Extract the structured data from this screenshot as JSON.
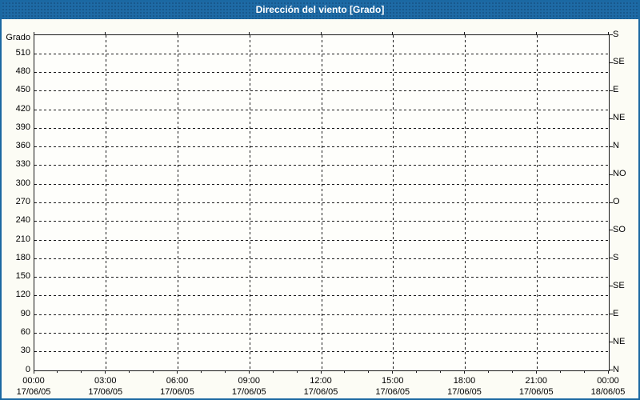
{
  "window": {
    "title": "Dirección del viento [Grado]"
  },
  "colors": {
    "titlebar_bg": "#1e6ba6",
    "titlebar_text": "#ffffff",
    "panel_border": "#1a68a2",
    "page_bg": "#fcfcf5",
    "plot_bg": "#fefefb",
    "grid": "#1a1a1a",
    "label_text": "#000000"
  },
  "chart_data": {
    "type": "line",
    "title": "Dirección del viento [Grado]",
    "series": [],
    "grid": "dashed",
    "y_axis_left": {
      "label": "Grado",
      "min": 0,
      "max": 540,
      "gridline_step": 30,
      "ticks": [
        0,
        30,
        60,
        90,
        120,
        150,
        180,
        210,
        240,
        270,
        300,
        330,
        360,
        390,
        420,
        450,
        480,
        510
      ]
    },
    "y_axis_right": {
      "tick_step": 45,
      "ticks": [
        {
          "value": 0,
          "label": "N"
        },
        {
          "value": 45,
          "label": "NE"
        },
        {
          "value": 90,
          "label": "E"
        },
        {
          "value": 135,
          "label": "SE"
        },
        {
          "value": 180,
          "label": "S"
        },
        {
          "value": 225,
          "label": "SO"
        },
        {
          "value": 270,
          "label": "O"
        },
        {
          "value": 315,
          "label": "NO"
        },
        {
          "value": 360,
          "label": "N"
        },
        {
          "value": 405,
          "label": "NE"
        },
        {
          "value": 450,
          "label": "E"
        },
        {
          "value": 495,
          "label": "SE"
        },
        {
          "value": 540,
          "label": "S"
        }
      ]
    },
    "x_axis": {
      "min_hour": 0,
      "max_hour": 24,
      "minor_tick_hours": 1,
      "gridline_hours": [
        3,
        6,
        9,
        12,
        15,
        18,
        21
      ],
      "major_ticks": [
        {
          "hour": 0,
          "time": "00:00",
          "date": "17/06/05"
        },
        {
          "hour": 3,
          "time": "03:00",
          "date": "17/06/05"
        },
        {
          "hour": 6,
          "time": "06:00",
          "date": "17/06/05"
        },
        {
          "hour": 9,
          "time": "09:00",
          "date": "17/06/05"
        },
        {
          "hour": 12,
          "time": "12:00",
          "date": "17/06/05"
        },
        {
          "hour": 15,
          "time": "15:00",
          "date": "17/06/05"
        },
        {
          "hour": 18,
          "time": "18:00",
          "date": "17/06/05"
        },
        {
          "hour": 21,
          "time": "21:00",
          "date": "17/06/05"
        },
        {
          "hour": 24,
          "time": "00:00",
          "date": "18/06/05"
        }
      ]
    }
  }
}
